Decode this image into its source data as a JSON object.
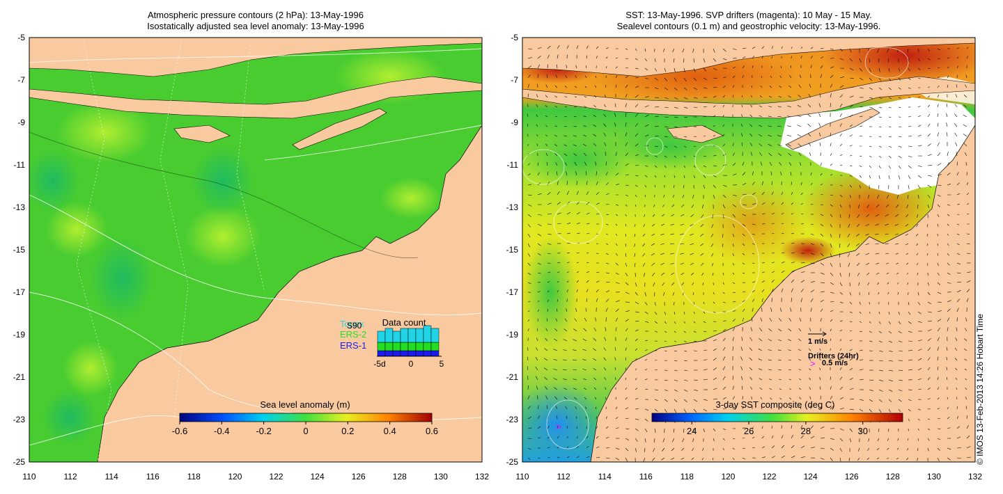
{
  "left_panel": {
    "title_line1": "Atmospheric pressure contours (2 hPa): 13-May-1996",
    "title_line2": "Isostatically adjusted sea level anomaly: 13-May-1996",
    "colorbar": {
      "label": "Sea level anomaly (m)",
      "min": -0.6,
      "max": 0.6,
      "ticks": [
        "-0.6",
        "-0.4",
        "-0.2",
        "0",
        "0.2",
        "0.4",
        "0.6"
      ]
    },
    "inset": {
      "title": "Data count",
      "legend": [
        {
          "label": "Topex",
          "color": "#22d3e6"
        },
        {
          "label": "S90",
          "color": "#000000"
        },
        {
          "label": "ERS-2",
          "color": "#22dd22"
        },
        {
          "label": "ERS-1",
          "color": "#1a1aee"
        }
      ],
      "x_ticks": [
        "-5d",
        "0",
        "5"
      ],
      "bars_topex": [
        4,
        5,
        4,
        5,
        5,
        5,
        6,
        5
      ],
      "bars_ers2": [
        3,
        3,
        3,
        3,
        3,
        3,
        3,
        3
      ],
      "bars_ers1": [
        2,
        2,
        2,
        2,
        2,
        2,
        2,
        2
      ]
    }
  },
  "right_panel": {
    "title_line1": "SST: 13-May-1996. SVP drifters (magenta): 10 May - 15 May.",
    "title_line2": "Sealevel contours (0.1 m) and geostrophic velocity: 13-May-1996.",
    "colorbar": {
      "label": "3-day SST composite (deg C)",
      "min": 22.6,
      "max": 31.4,
      "ticks": [
        "24",
        "26",
        "28",
        "30"
      ]
    },
    "scale_label": "1 m/s",
    "drifters_label": "Drifters (24hr)",
    "drifters_speed": "0.5 m/s",
    "drifter_marker": ">"
  },
  "map": {
    "lon_ticks": [
      "110",
      "112",
      "114",
      "116",
      "118",
      "120",
      "122",
      "124",
      "126",
      "128",
      "130",
      "132"
    ],
    "lat_ticks": [
      "-5",
      "-7",
      "-9",
      "-11",
      "-13",
      "-15",
      "-17",
      "-19",
      "-21",
      "-23",
      "-25"
    ],
    "land_color": "#f9caa0",
    "ocean_color_left": "#44cc22",
    "cloud_color": "#ffffff"
  },
  "credit": "© IMOS 13-Feb-2013 14:26 Hobart Time"
}
